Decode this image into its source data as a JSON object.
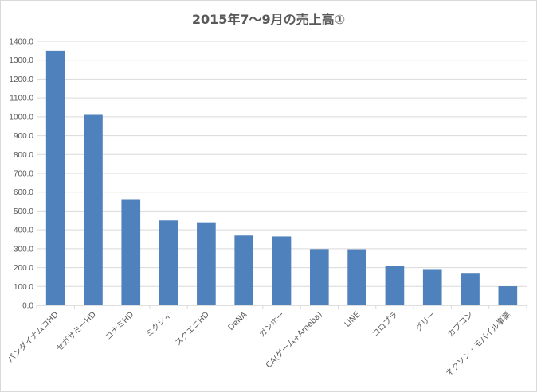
{
  "chart_data": {
    "type": "bar",
    "title": "2015年7〜9月の売上高①",
    "categories": [
      "バンダイナムコHD",
      "セガサミーHD",
      "コナミHD",
      "ミクシィ",
      "スクエニHD",
      "DeNA",
      "ガンホー",
      "CA(ゲーム+Ameba)",
      "LINE",
      "コロプラ",
      "グリー",
      "カプコン",
      "ネクソン・モバイル事業"
    ],
    "values": [
      1350,
      1010,
      563,
      450,
      440,
      370,
      365,
      298,
      297,
      210,
      192,
      172,
      101
    ],
    "ylim": [
      0,
      1400
    ],
    "yticks": [
      "0.0",
      "100.0",
      "200.0",
      "300.0",
      "400.0",
      "500.0",
      "600.0",
      "700.0",
      "800.0",
      "900.0",
      "1000.0",
      "1100.0",
      "1200.0",
      "1300.0",
      "1400.0"
    ],
    "grid": true,
    "legend": "none",
    "bar_color": "#4f81bd",
    "grid_color": "#d9d9d9"
  }
}
